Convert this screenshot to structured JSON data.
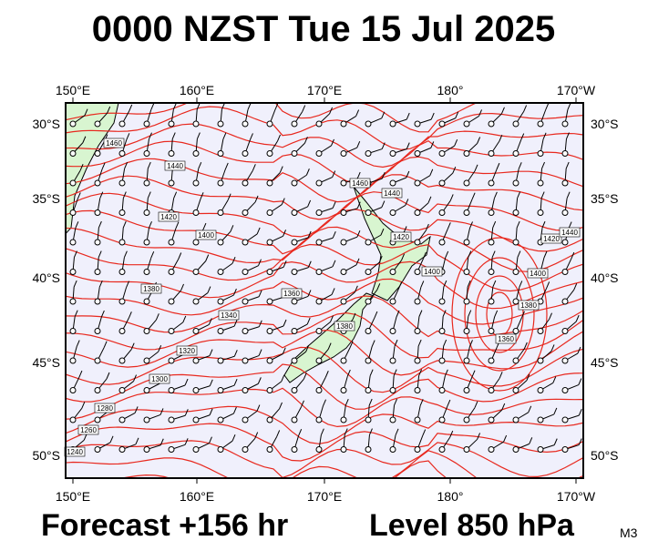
{
  "title": "0000 NZST Tue 15 Jul 2025",
  "footer": {
    "forecast": "Forecast +156 hr",
    "level": "Level 850 hPa",
    "code": "M3"
  },
  "map": {
    "lon_labels": [
      "150°E",
      "160°E",
      "170°E",
      "180°",
      "170°W"
    ],
    "lat_labels": [
      "30°S",
      "35°S",
      "40°S",
      "45°S",
      "50°S"
    ],
    "contour_labels": [
      "1460",
      "1440",
      "1420",
      "1400",
      "1380",
      "1360",
      "1340",
      "1320",
      "1300",
      "1280",
      "1260",
      "1240",
      "1460",
      "1440",
      "1420",
      "1400",
      "1380",
      "1360",
      "1380",
      "1400",
      "1420",
      "1440"
    ]
  }
}
